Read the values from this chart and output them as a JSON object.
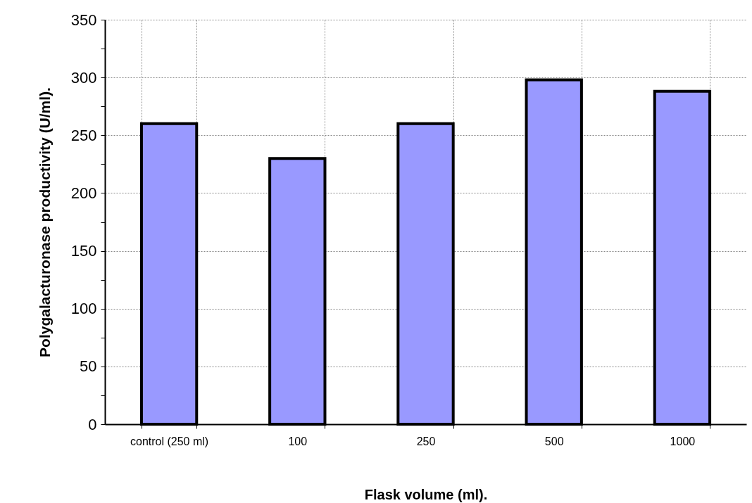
{
  "chart_data": {
    "type": "bar",
    "xlabel": "Flask volume (ml).",
    "ylabel": "Polygalacturonase productivity (U/ml).",
    "categories": [
      "control (250 ml)",
      "100",
      "250",
      "500",
      "1000"
    ],
    "values": [
      260,
      230,
      260,
      298,
      288
    ],
    "color": "#9999ff",
    "ylim": [
      0,
      350
    ],
    "yticks": [
      0,
      {
        "value": 25,
        "label": null
      },
      50,
      {
        "value": 75,
        "label": null
      },
      100,
      {
        "value": 125,
        "label": null
      },
      150,
      {
        "value": 175,
        "label": null
      },
      200,
      {
        "value": 225,
        "label": null
      },
      250,
      {
        "value": 275,
        "label": null
      },
      300,
      {
        "value": 325,
        "label": null
      },
      350
    ],
    "grid": true
  }
}
